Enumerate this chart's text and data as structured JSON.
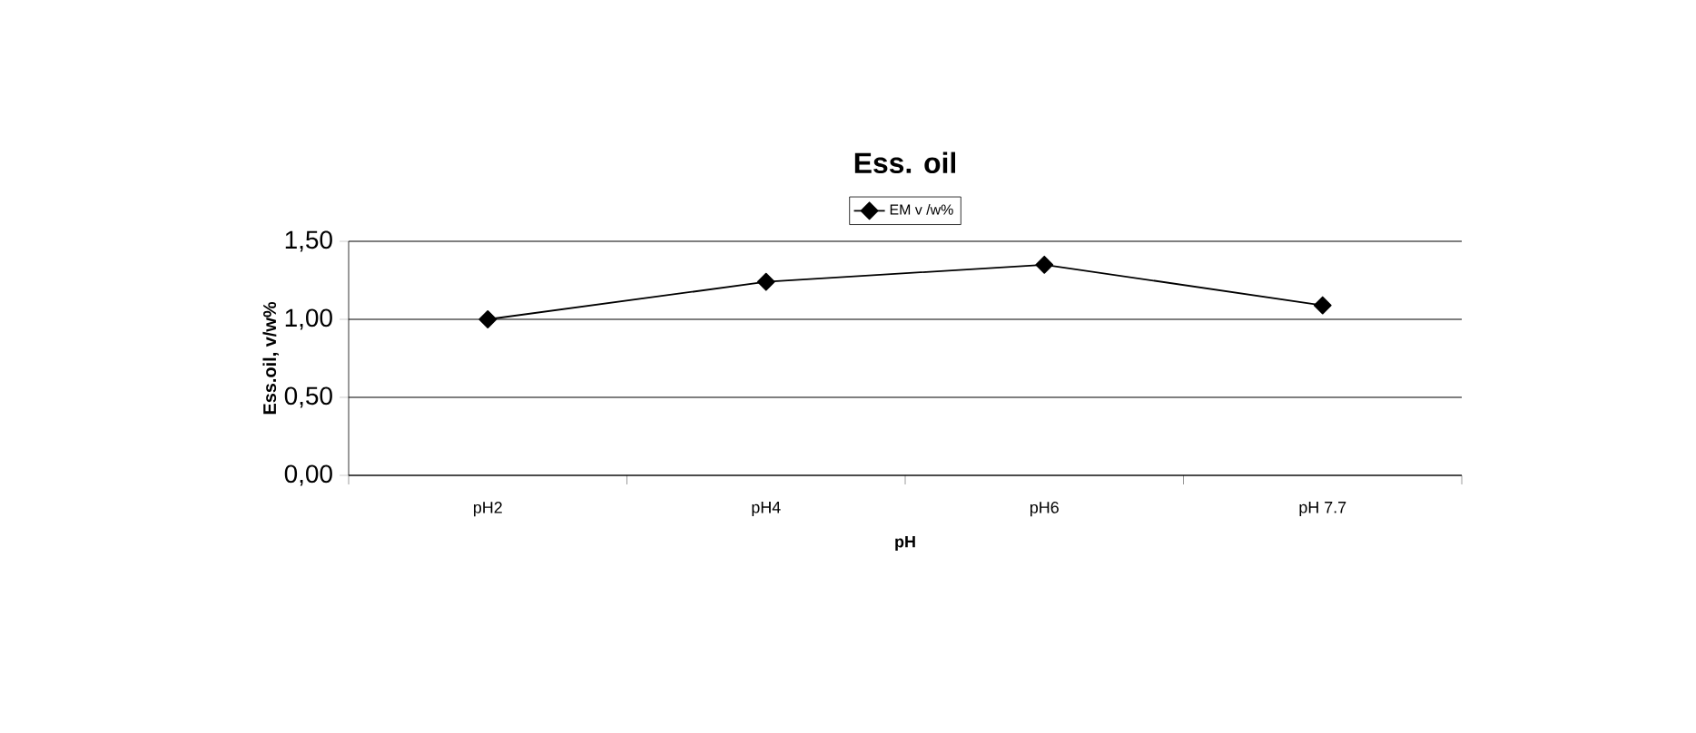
{
  "chart_data": {
    "type": "line",
    "title": "Ess. oil",
    "xlabel": "pH",
    "ylabel": "Ess.oil,  v/w%",
    "categories": [
      "pH2",
      "pH4",
      "pH6",
      "pH 7.7"
    ],
    "series": [
      {
        "name": "EM v /w%",
        "color": "#000000",
        "values": [
          1.0,
          1.24,
          1.35,
          1.09
        ]
      }
    ],
    "ylim": [
      0,
      1.5
    ],
    "yticks": [
      {
        "value": 0,
        "label": "0,00"
      },
      {
        "value": 0.5,
        "label": "0,50"
      },
      {
        "value": 1.0,
        "label": "1,00"
      },
      {
        "value": 1.5,
        "label": "1,50"
      }
    ],
    "grid": "y",
    "legend": "top",
    "marker": "diamond",
    "line_style": "solid"
  }
}
